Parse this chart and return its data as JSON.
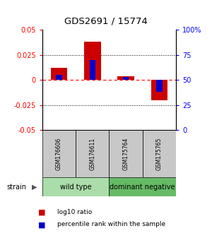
{
  "title": "GDS2691 / 15774",
  "samples": [
    "GSM176606",
    "GSM176611",
    "GSM175764",
    "GSM175765"
  ],
  "log10_ratio": [
    0.012,
    0.038,
    0.004,
    -0.02
  ],
  "percentile_rank": [
    55,
    70,
    53,
    38
  ],
  "ylim_left": [
    -0.05,
    0.05
  ],
  "ylim_right": [
    0,
    100
  ],
  "yticks_left": [
    -0.05,
    -0.025,
    0,
    0.025,
    0.05
  ],
  "ytick_labels_left": [
    "-0.05",
    "-0.025",
    "0",
    "0.025",
    "0.05"
  ],
  "yticks_right": [
    0,
    25,
    50,
    75,
    100
  ],
  "ytick_labels_right": [
    "0",
    "25",
    "50",
    "75",
    "100%"
  ],
  "bar_color_red": "#cc0000",
  "bar_color_blue": "#0000cc",
  "strain_groups": [
    {
      "label": "wild type",
      "indices": [
        0,
        1
      ],
      "color": "#aaddaa"
    },
    {
      "label": "dominant negative",
      "indices": [
        2,
        3
      ],
      "color": "#66bb66"
    }
  ],
  "legend_red": "log10 ratio",
  "legend_blue": "percentile rank within the sample",
  "strain_label": "strain",
  "bg_color": "#ffffff",
  "cell_color": "#c8c8c8"
}
